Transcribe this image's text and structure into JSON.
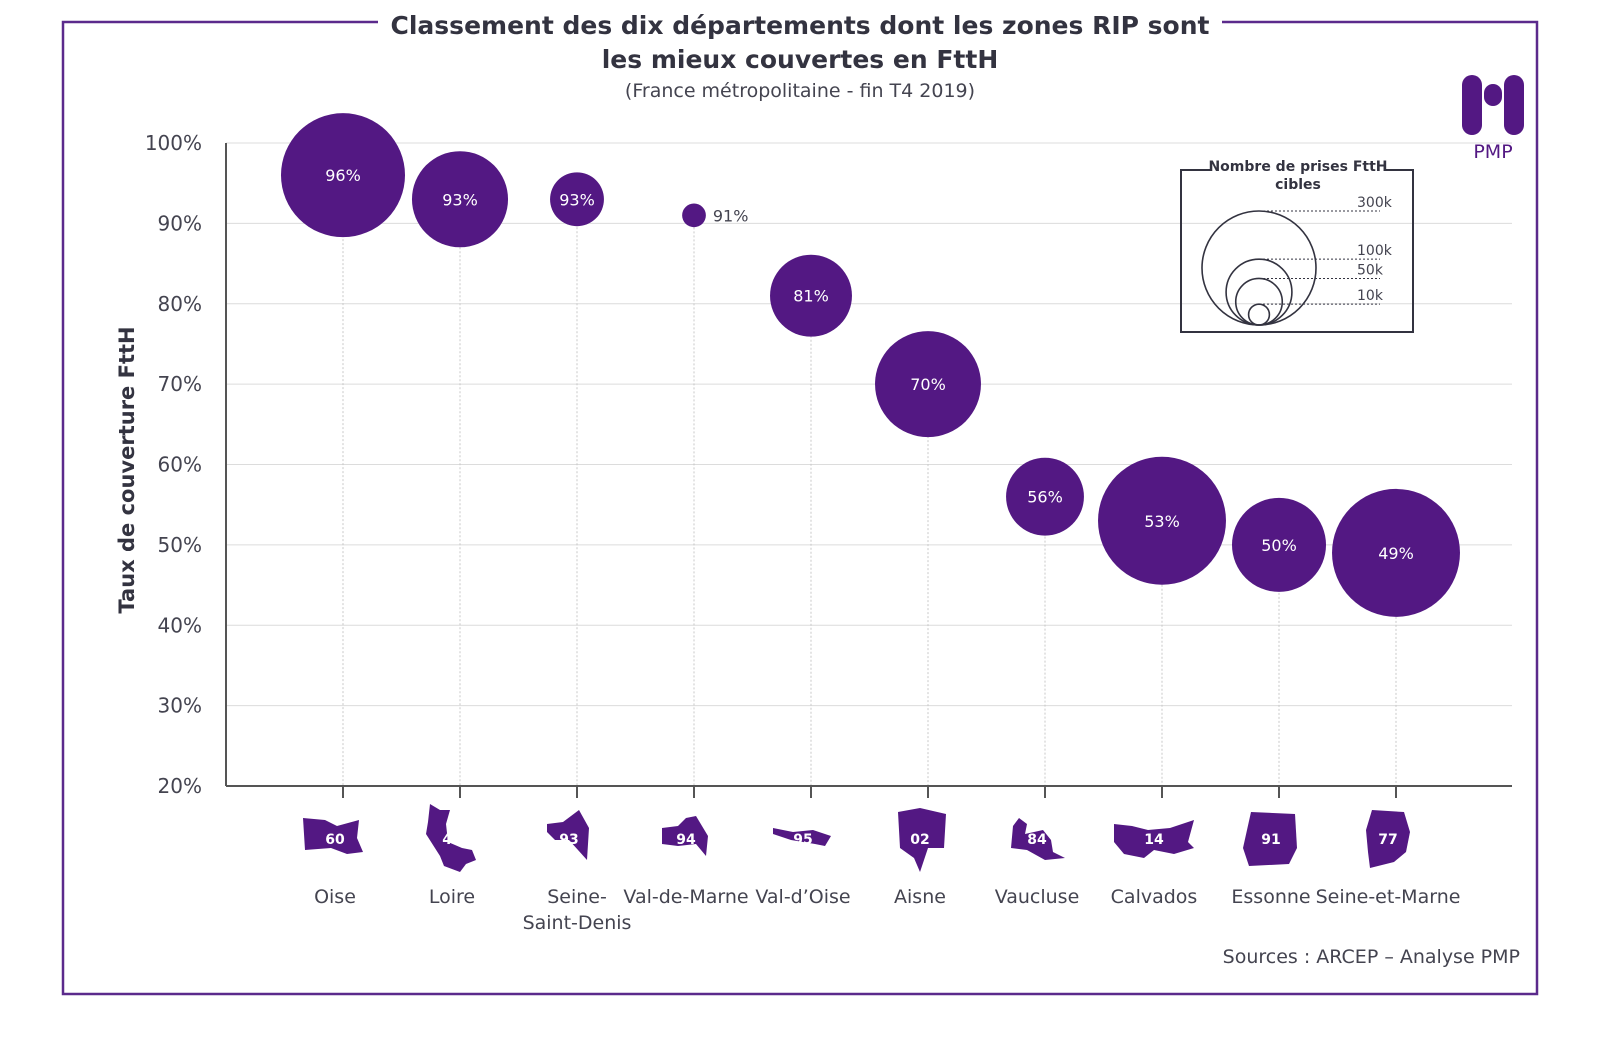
{
  "chart_data": {
    "type": "bubble",
    "title_line1": "Classement des dix départements dont les zones RIP sont",
    "title_line2": "les mieux couvertes en FttH",
    "subtitle": "(France métropolitaine - fin T4 2019)",
    "ylabel": "Taux de couverture FttH",
    "ylim": [
      20,
      100
    ],
    "yticks": [
      "20%",
      "30%",
      "40%",
      "50%",
      "60%",
      "70%",
      "80%",
      "90%",
      "100%"
    ],
    "ytick_values": [
      20,
      30,
      40,
      50,
      60,
      70,
      80,
      90,
      100
    ],
    "grid": true,
    "categories": [
      "Oise",
      "Loire",
      "Seine-\nSaint-Denis",
      "Val-de-Marne",
      "Val-d’Oise",
      "Aisne",
      "Vaucluse",
      "Calvados",
      "Essonne",
      "Seine-et-Marne"
    ],
    "department_codes": [
      "60",
      "42",
      "93",
      "94",
      "95",
      "02",
      "84",
      "14",
      "91",
      "77"
    ],
    "values": [
      96,
      93,
      93,
      91,
      81,
      70,
      56,
      53,
      50,
      49
    ],
    "labels": [
      "96%",
      "93%",
      "93%",
      "91%",
      "81%",
      "70%",
      "56%",
      "53%",
      "50%",
      "49%"
    ],
    "bubble_size_prises_k": [
      355,
      213,
      67,
      13,
      155,
      259,
      140,
      378,
      204,
      378
    ],
    "legend": {
      "title": "Nombre de prises FttH cibles",
      "sizes": [
        "300k",
        "100k",
        "50k",
        "10k"
      ],
      "size_values_k": [
        300,
        100,
        50,
        10
      ],
      "placement": "top-right"
    },
    "source": "Sources : ARCEP – Analyse PMP"
  },
  "logo": {
    "text": "PMP"
  },
  "colors": {
    "bubble": "#531883",
    "frame": "#5b2a8c",
    "text": "#333340",
    "grid": "#dcdcdc"
  }
}
